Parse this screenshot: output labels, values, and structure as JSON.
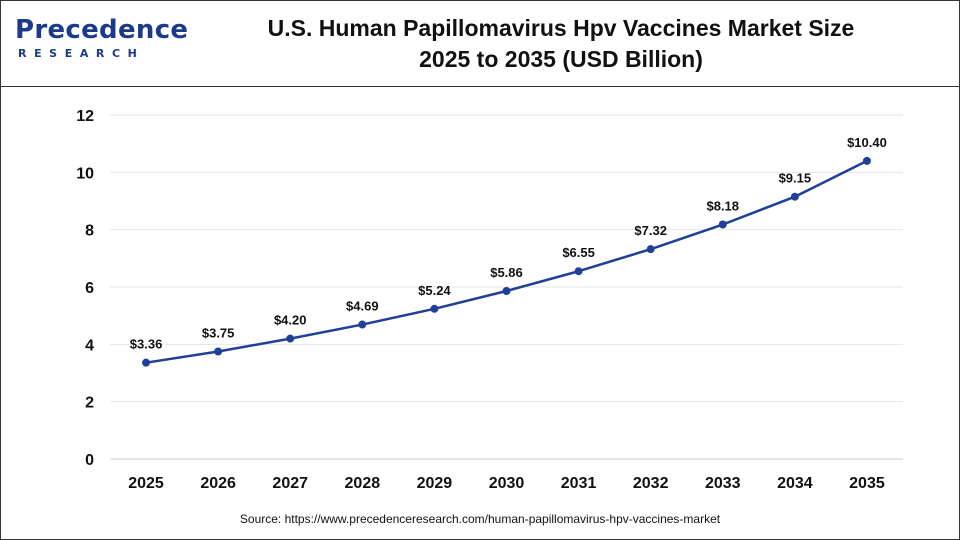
{
  "header": {
    "logo_text": "Precedence",
    "logo_subtext": "RESEARCH",
    "title_line1": "U.S. Human Papillomavirus Hpv Vaccines Market Size",
    "title_line2": "2025 to 2035 (USD Billion)"
  },
  "source_text": "Source: https://www.precedenceresearch.com/human-papillomavirus-hpv-vaccines-market",
  "colors": {
    "line": "#1f3f99",
    "brand": "#1b3a8a",
    "grid": "#e6e6e6",
    "text": "#111111"
  },
  "chart_data": {
    "type": "line",
    "title": "U.S. Human Papillomavirus Hpv Vaccines Market Size 2025 to 2035 (USD Billion)",
    "xlabel": "",
    "ylabel": "",
    "categories": [
      "2025",
      "2026",
      "2027",
      "2028",
      "2029",
      "2030",
      "2031",
      "2032",
      "2033",
      "2034",
      "2035"
    ],
    "values": [
      3.36,
      3.75,
      4.2,
      4.69,
      5.24,
      5.86,
      6.55,
      7.32,
      8.18,
      9.15,
      10.4
    ],
    "data_labels": [
      "$3.36",
      "$3.75",
      "$4.20",
      "$4.69",
      "$5.24",
      "$5.86",
      "$6.55",
      "$7.32",
      "$8.18",
      "$9.15",
      "$10.40"
    ],
    "ylim": [
      0,
      12
    ],
    "yticks": [
      "0",
      "2",
      "4",
      "6",
      "8",
      "10",
      "12"
    ],
    "grid": true,
    "legend": "none"
  }
}
